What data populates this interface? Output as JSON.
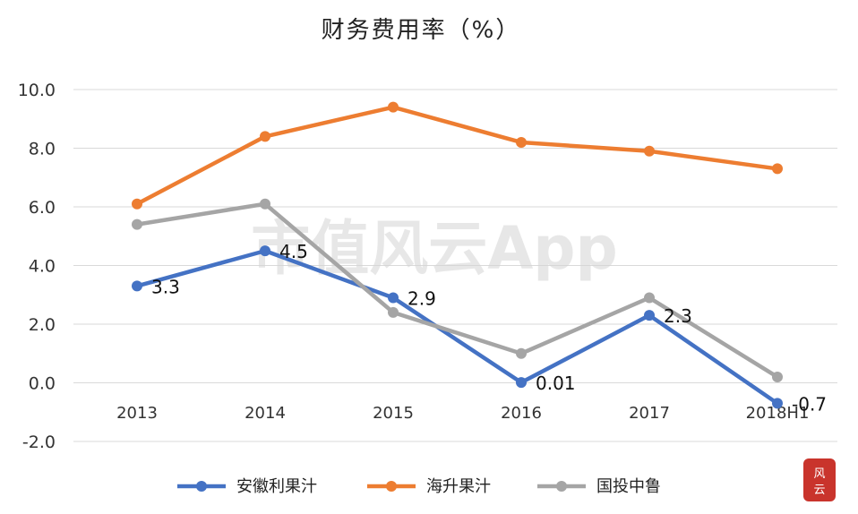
{
  "chart_data": {
    "type": "line",
    "title": "财务费用率（%）",
    "categories": [
      "2013",
      "2014",
      "2015",
      "2016",
      "2017",
      "2018H1"
    ],
    "ylim": [
      -2.0,
      10.0
    ],
    "yticks": [
      "10.0",
      "8.0",
      "6.0",
      "4.0",
      "2.0",
      "0.0",
      "-2.0"
    ],
    "ytick_values": [
      10,
      8,
      6,
      4,
      2,
      0,
      -2
    ],
    "grid": true,
    "legend_position": "bottom",
    "series": [
      {
        "name": "安徽利果汁",
        "color": "#4472c4",
        "values": [
          3.3,
          4.5,
          2.9,
          0.01,
          2.3,
          -0.7
        ],
        "labels": [
          "3.3",
          "4.5",
          "2.9",
          "0.01",
          "2.3",
          "-0.7"
        ]
      },
      {
        "name": "海升果汁",
        "color": "#ed7d31",
        "values": [
          6.1,
          8.4,
          9.4,
          8.2,
          7.9,
          7.3
        ]
      },
      {
        "name": "国投中鲁",
        "color": "#a5a5a5",
        "values": [
          5.4,
          6.1,
          2.4,
          1.0,
          2.9,
          0.2
        ]
      }
    ],
    "watermark": "市值风云App"
  }
}
